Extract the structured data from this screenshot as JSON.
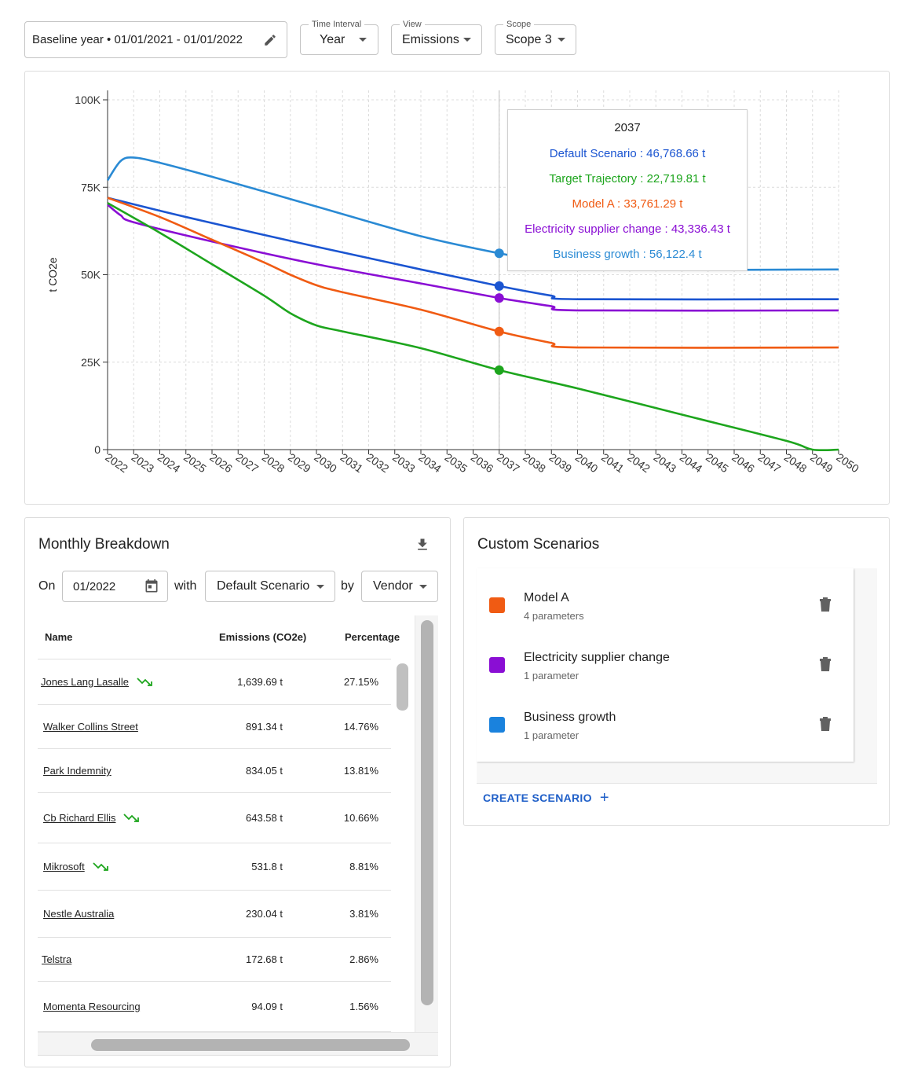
{
  "controls": {
    "baseline": "Baseline year • 01/01/2021 - 01/01/2022",
    "time_interval": {
      "label": "Time Interval",
      "value": "Year"
    },
    "view": {
      "label": "View",
      "value": "Emissions"
    },
    "scope": {
      "label": "Scope",
      "value": "Scope 3"
    }
  },
  "chart_data": {
    "type": "line",
    "ylabel": "t CO2e",
    "ylim": [
      0,
      100000
    ],
    "yticks": [
      0,
      25000,
      50000,
      75000,
      100000
    ],
    "ytick_labels": [
      "0",
      "25K",
      "50K",
      "75K",
      "100K"
    ],
    "x": [
      2022,
      2023,
      2024,
      2025,
      2026,
      2027,
      2028,
      2029,
      2030,
      2031,
      2032,
      2033,
      2034,
      2035,
      2036,
      2037,
      2038,
      2039,
      2040,
      2041,
      2042,
      2043,
      2044,
      2045,
      2046,
      2047,
      2048,
      2049,
      2050
    ],
    "grid": true,
    "hover_year": 2037,
    "series": [
      {
        "name": "Business growth",
        "color": "#2a8ad4",
        "points": [
          [
            2022,
            77000
          ],
          [
            2022.5,
            82500
          ],
          [
            2023,
            83500
          ],
          [
            2024,
            82000
          ],
          [
            2026,
            78000
          ],
          [
            2030,
            69500
          ],
          [
            2034,
            61000
          ],
          [
            2037,
            56122.4
          ],
          [
            2039,
            53500
          ],
          [
            2040,
            51500
          ],
          [
            2050,
            51500
          ]
        ]
      },
      {
        "name": "Default Scenario",
        "color": "#1b55d1",
        "points": [
          [
            2022,
            72000
          ],
          [
            2025,
            66500
          ],
          [
            2030,
            58000
          ],
          [
            2034,
            51500
          ],
          [
            2037,
            46768.66
          ],
          [
            2039,
            44000
          ],
          [
            2040,
            43000
          ],
          [
            2050,
            43000
          ]
        ]
      },
      {
        "name": "Electricity supplier change",
        "color": "#8a0ed4",
        "points": [
          [
            2022,
            70000
          ],
          [
            2022.5,
            67000
          ],
          [
            2023,
            65000
          ],
          [
            2026,
            59500
          ],
          [
            2030,
            53000
          ],
          [
            2034,
            47500
          ],
          [
            2037,
            43336.43
          ],
          [
            2039,
            41000
          ],
          [
            2040,
            39800
          ],
          [
            2050,
            39800
          ]
        ]
      },
      {
        "name": "Model A",
        "color": "#f05b13",
        "points": [
          [
            2022,
            72000
          ],
          [
            2024,
            66500
          ],
          [
            2026,
            60000
          ],
          [
            2028,
            53500
          ],
          [
            2029,
            50000
          ],
          [
            2030,
            47000
          ],
          [
            2031,
            45000
          ],
          [
            2034,
            40000
          ],
          [
            2037,
            33761.29
          ],
          [
            2039,
            30500
          ],
          [
            2040,
            29200
          ],
          [
            2050,
            29200
          ]
        ]
      },
      {
        "name": "Target Trajectory",
        "color": "#1da51d",
        "points": [
          [
            2022,
            70500
          ],
          [
            2024,
            62000
          ],
          [
            2026,
            53000
          ],
          [
            2028,
            44000
          ],
          [
            2029,
            39000
          ],
          [
            2030,
            35500
          ],
          [
            2031,
            33800
          ],
          [
            2034,
            29000
          ],
          [
            2037,
            22719.81
          ],
          [
            2040,
            17500
          ],
          [
            2044,
            10000
          ],
          [
            2048,
            2500
          ],
          [
            2049,
            0.8
          ],
          [
            2050,
            0
          ]
        ]
      }
    ]
  },
  "tooltip": {
    "year": "2037",
    "rows": [
      {
        "text": "Default Scenario : 46,768.66 t",
        "color": "#1b55d1"
      },
      {
        "text": "Target Trajectory : 22,719.81 t",
        "color": "#1da51d"
      },
      {
        "text": "Model A : 33,761.29 t",
        "color": "#f05b13"
      },
      {
        "text": "Electricity supplier change : 43,336.43 t",
        "color": "#8a0ed4"
      },
      {
        "text": "Business growth : 56,122.4 t",
        "color": "#2a8ad4"
      }
    ]
  },
  "breakdown": {
    "title": "Monthly Breakdown",
    "on_label": "On",
    "date": "01/2022",
    "with_label": "with",
    "scenario": "Default Scenario",
    "by_label": "by",
    "group": "Vendor",
    "columns": [
      "Name",
      "Emissions (CO2e)",
      "Percentage"
    ],
    "rows": [
      {
        "name": "Jones Lang Lasalle",
        "emissions": "1,639.69 t",
        "pct": "27.15%",
        "trend": true
      },
      {
        "name": "Walker Collins Street",
        "emissions": "891.34 t",
        "pct": "14.76%",
        "trend": false
      },
      {
        "name": "Park Indemnity",
        "emissions": "834.05 t",
        "pct": "13.81%",
        "trend": false
      },
      {
        "name": "Cb Richard Ellis",
        "emissions": "643.58 t",
        "pct": "10.66%",
        "trend": true
      },
      {
        "name": "Mikrosoft",
        "emissions": "531.8 t",
        "pct": "8.81%",
        "trend": true
      },
      {
        "name": "Nestle Australia",
        "emissions": "230.04 t",
        "pct": "3.81%",
        "trend": false
      },
      {
        "name": "Telstra",
        "emissions": "172.68 t",
        "pct": "2.86%",
        "trend": false
      },
      {
        "name": "Momenta Resourcing",
        "emissions": "94.09 t",
        "pct": "1.56%",
        "trend": false
      }
    ]
  },
  "scenarios": {
    "title": "Custom Scenarios",
    "items": [
      {
        "name": "Model A",
        "params": "4 parameters",
        "color": "#f05b13"
      },
      {
        "name": "Electricity supplier change",
        "params": "1 parameter",
        "color": "#8a0ed4"
      },
      {
        "name": "Business growth",
        "params": "1 parameter",
        "color": "#1a82dd"
      }
    ],
    "create_label": "CREATE SCENARIO"
  }
}
